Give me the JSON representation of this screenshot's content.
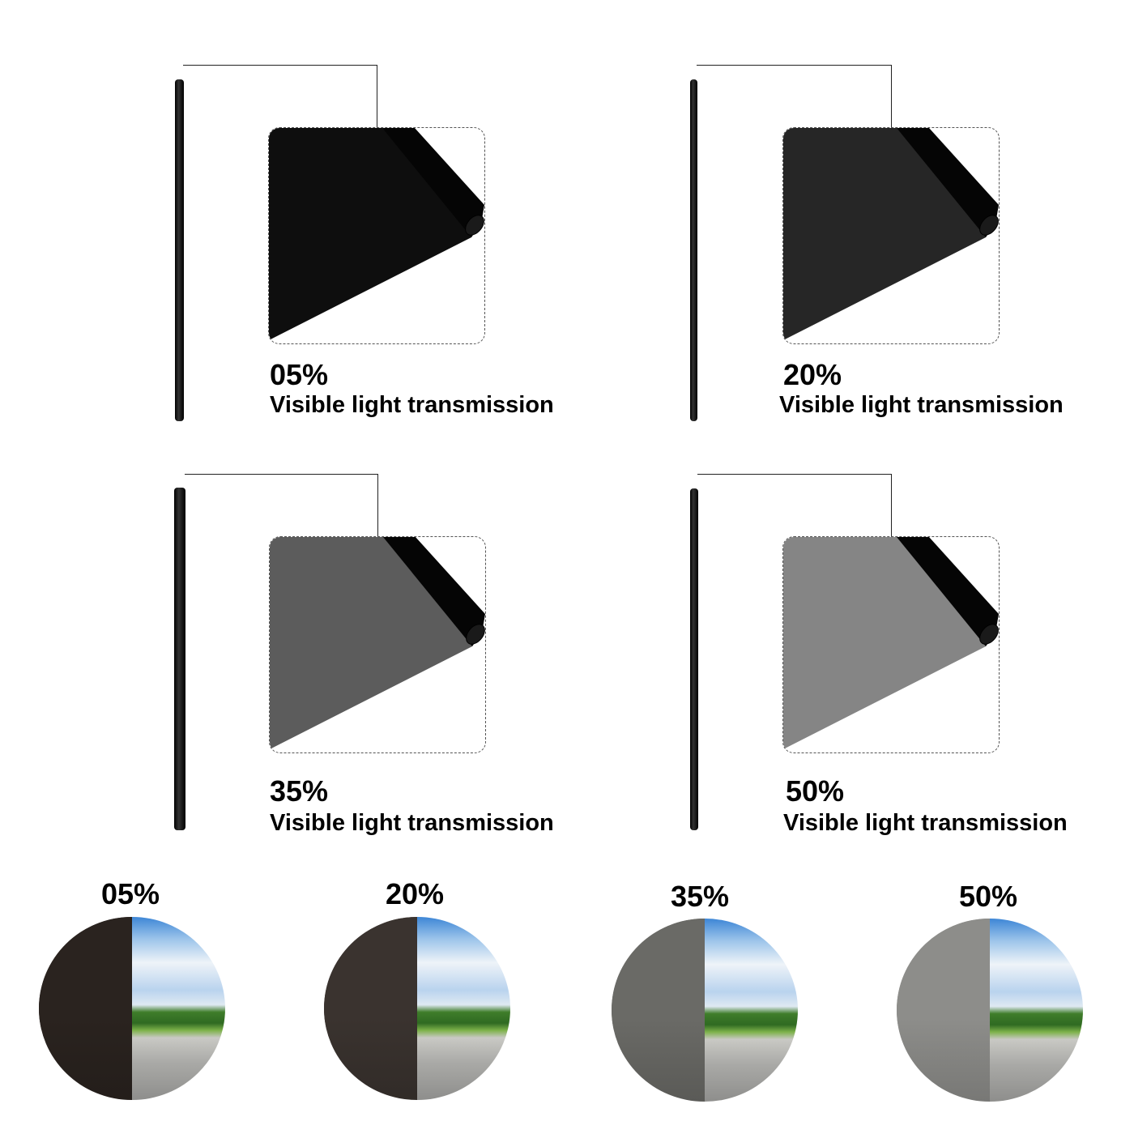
{
  "panels": [
    {
      "percent": "05%",
      "caption": "Visible light transmission",
      "tint": "#0e0e0e"
    },
    {
      "percent": "20%",
      "caption": "Visible light transmission",
      "tint": "#262626"
    },
    {
      "percent": "35%",
      "caption": "Visible light transmission",
      "tint": "#5c5c5c"
    },
    {
      "percent": "50%",
      "caption": "Visible light transmission",
      "tint": "#858585"
    }
  ],
  "views": [
    {
      "percent": "05%",
      "tint": "#2a231f"
    },
    {
      "percent": "20%",
      "tint": "#3a332f"
    },
    {
      "percent": "35%",
      "tint": "#6a6a66"
    },
    {
      "percent": "50%",
      "tint": "#8d8d8a"
    }
  ]
}
